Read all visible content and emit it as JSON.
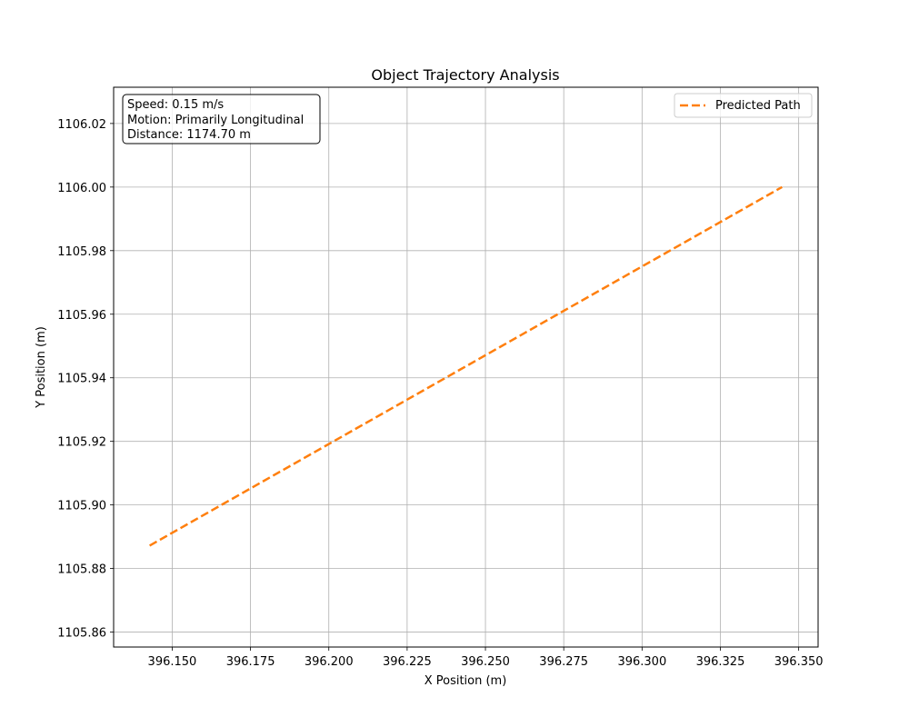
{
  "chart_data": {
    "type": "line",
    "title": "Object Trajectory Analysis",
    "xlabel": "X Position (m)",
    "ylabel": "Y Position (m)",
    "xlim": [
      396.1313,
      396.3562
    ],
    "ylim": [
      1105.8553,
      1106.0314
    ],
    "x_ticks": [
      396.15,
      396.175,
      396.2,
      396.225,
      396.25,
      396.275,
      396.3,
      396.325,
      396.35
    ],
    "x_tick_labels": [
      "396.150",
      "396.175",
      "396.200",
      "396.225",
      "396.250",
      "396.275",
      "396.300",
      "396.325",
      "396.350"
    ],
    "y_ticks": [
      1105.86,
      1105.88,
      1105.9,
      1105.92,
      1105.94,
      1105.96,
      1105.98,
      1106.0,
      1106.02
    ],
    "y_tick_labels": [
      "1105.86",
      "1105.88",
      "1105.90",
      "1105.92",
      "1105.94",
      "1105.96",
      "1105.98",
      "1106.00",
      "1106.02"
    ],
    "grid": true,
    "legend_position": "top-right",
    "series": [
      {
        "name": "Predicted Path",
        "color": "#ff7f0e",
        "line_style": "dashed",
        "x": [
          396.1428,
          396.3447
        ],
        "y": [
          1105.8872,
          1106.0
        ]
      }
    ],
    "annotation_lines": [
      "Speed: 0.15 m/s",
      "Motion: Primarily Longitudinal",
      "Distance: 1174.70 m"
    ]
  }
}
